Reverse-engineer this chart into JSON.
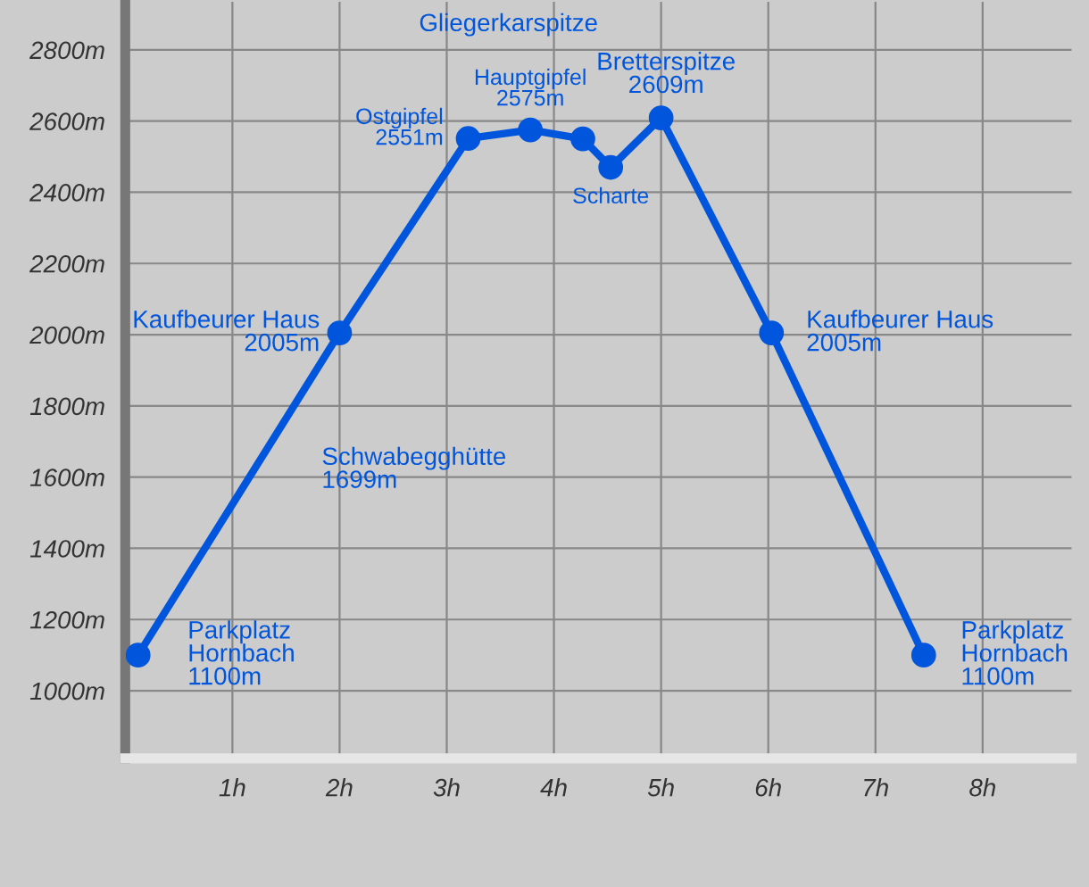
{
  "chart_data": {
    "type": "line",
    "x": [
      0.12,
      2,
      3.2,
      3.78,
      4.27,
      4.53,
      5,
      6.03,
      7.45
    ],
    "values": [
      1100,
      2005,
      2551,
      2575,
      2550,
      2470,
      2609,
      2005,
      1100
    ],
    "color": "#0055dd",
    "marker": "circle",
    "line_style": "solid",
    "grid": true,
    "legend": false,
    "xlim": [
      0,
      8.83
    ],
    "ylim": [
      810,
      2935
    ],
    "xticks": [
      {
        "value": 1,
        "label": "1h"
      },
      {
        "value": 2,
        "label": "2h"
      },
      {
        "value": 3,
        "label": "3h"
      },
      {
        "value": 4,
        "label": "4h"
      },
      {
        "value": 5,
        "label": "5h"
      },
      {
        "value": 6,
        "label": "6h"
      },
      {
        "value": 7,
        "label": "7h"
      },
      {
        "value": 8,
        "label": "8h"
      }
    ],
    "yticks": [
      {
        "value": 1000,
        "label": "1000m"
      },
      {
        "value": 1200,
        "label": "1200m"
      },
      {
        "value": 1400,
        "label": "1400m"
      },
      {
        "value": 1600,
        "label": "1600m"
      },
      {
        "value": 1800,
        "label": "1800m"
      },
      {
        "value": 2000,
        "label": "2000m"
      },
      {
        "value": 2200,
        "label": "2200m"
      },
      {
        "value": 2400,
        "label": "2400m"
      },
      {
        "value": 2600,
        "label": "2600m"
      },
      {
        "value": 2800,
        "label": "2800m"
      }
    ],
    "annotations": [
      {
        "text": "Parkplatz\nHornbach\n1100m",
        "x": 0.12,
        "y": 1100
      },
      {
        "text": "Kaufbeurer Haus\n2005m",
        "x": 2,
        "y": 2005
      },
      {
        "text": "Ostgipfel\n2551m",
        "x": 3.2,
        "y": 2551
      },
      {
        "text": "Hauptgipfel\n2575m",
        "x": 3.78,
        "y": 2575
      },
      {
        "text": "Scharte",
        "x": 4.53,
        "y": 2470
      },
      {
        "text": "Bretterspitze\n2609m",
        "x": 5,
        "y": 2609
      },
      {
        "text": "Kaufbeurer Haus\n2005m",
        "x": 6.03,
        "y": 2005
      },
      {
        "text": "Parkplatz\nHornbach\n1100m",
        "x": 7.45,
        "y": 1100
      },
      {
        "text": "Schwabegghütte\n1699m",
        "x": 1.37,
        "y": 1699
      },
      "Gliegerkarspitze"
    ]
  }
}
